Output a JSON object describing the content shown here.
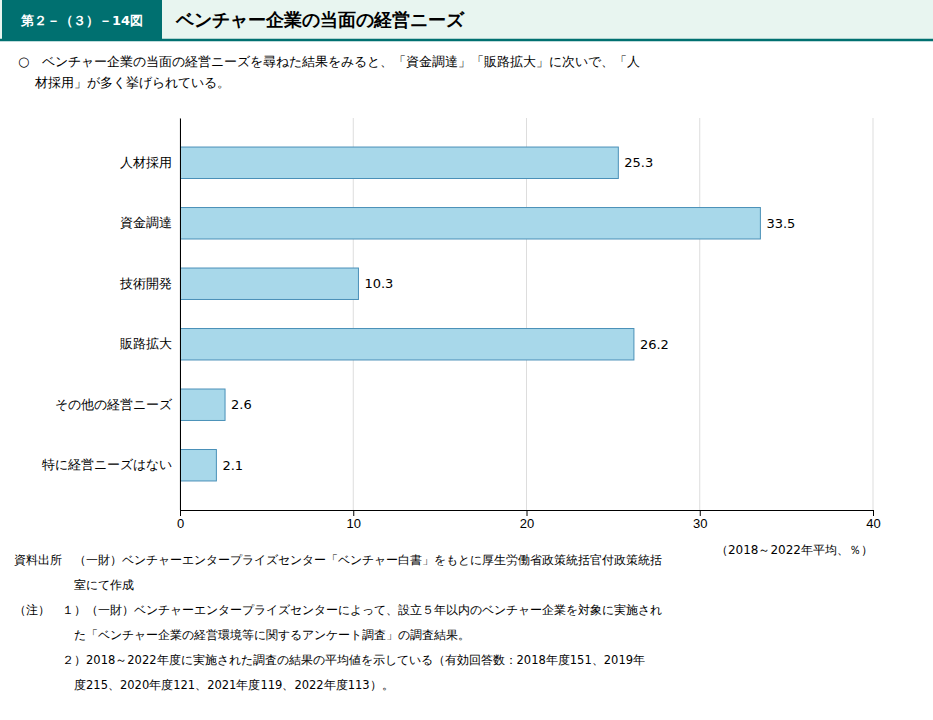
{
  "chart_data": {
    "type": "bar",
    "orientation": "horizontal",
    "figure_number": "第２－（３）－14図",
    "title": "ベンチャー企業の当面の経営ニーズ",
    "subtitle": [
      "○　ベンチャー企業の当面の経営ニーズを尋ねた結果をみると、「資金調達」「販路拡大」に次いで、「人",
      "　 材採用」が多く挙げられている。"
    ],
    "categories": [
      "人材採用",
      "資金調達",
      "技術開発",
      "販路拡大",
      "その他の経営ニーズ",
      "特に経営ニーズはない"
    ],
    "values": [
      25.3,
      33.5,
      10.3,
      26.2,
      2.6,
      2.1
    ],
    "color": "#a8d8ea",
    "xlim": [
      0,
      40
    ],
    "xticks": [
      0,
      10,
      20,
      30,
      40
    ],
    "xlabel": "（2018～2022年平均、％）",
    "grid": true,
    "data_labels": true,
    "source": [
      "資料出所　（一財）ベンチャーエンタープライズセンター「ベンチャー白書」をもとに厚生労働省政策統括官付政策統括",
      "　　　　　室にて作成"
    ],
    "notes": [
      "（注）　１）（一財）ベンチャーエンタープライズセンターによって、設立５年以内のベンチャー企業を対象に実施され",
      "　　　　　た「ベンチャー企業の経営環境等に関するアンケート調査」の調査結果。",
      "　　　　２）2018～2022年度に実施された調査の結果の平均値を示している（有効回答数：2018年度151、2019年",
      "　　　　　度215、2020年度121、2021年度119、2022年度113）。"
    ]
  }
}
